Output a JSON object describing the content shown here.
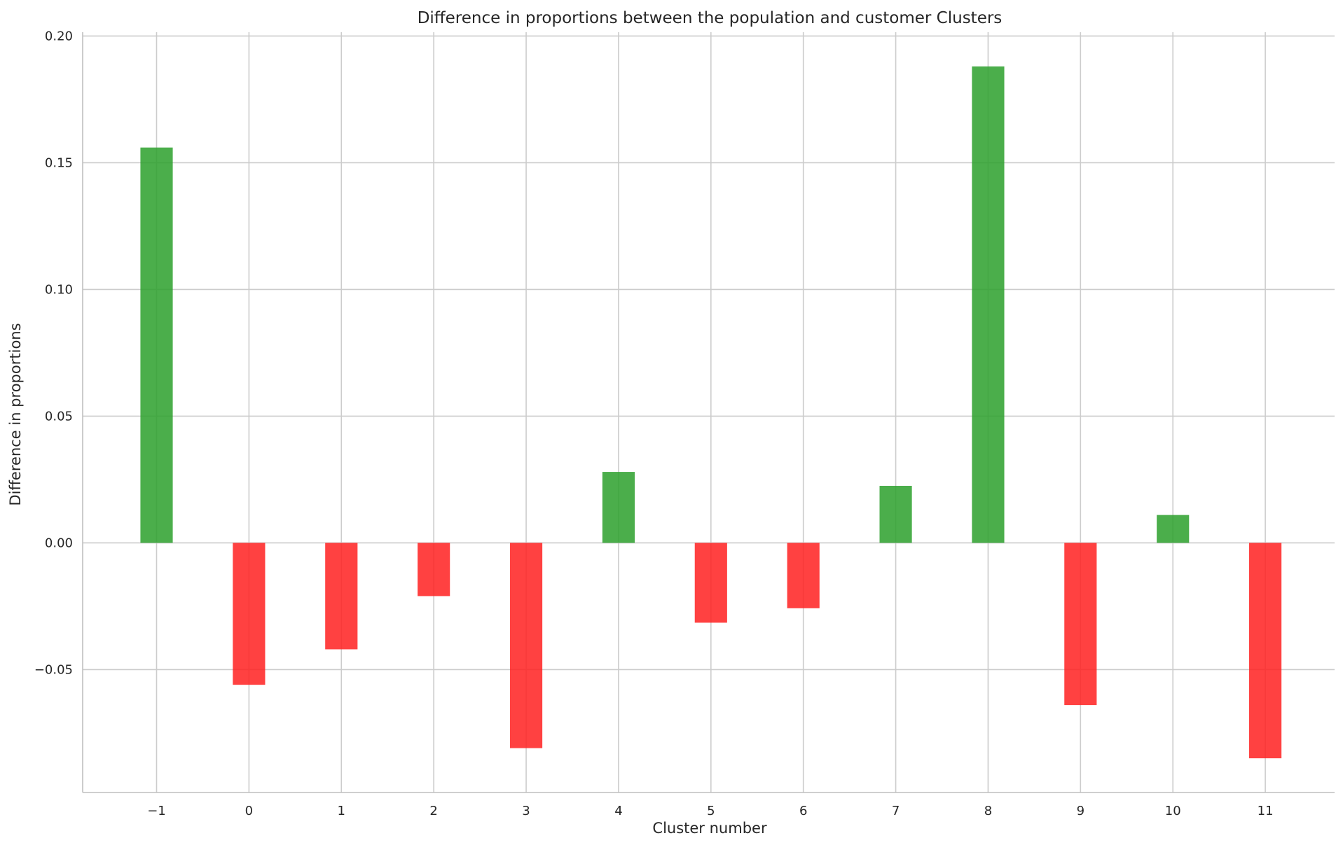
{
  "chart_data": {
    "type": "bar",
    "title": "Difference in proportions between the population and customer Clusters",
    "xlabel": "Cluster number",
    "ylabel": "Difference in proportions",
    "categories": [
      "−1",
      "0",
      "1",
      "2",
      "3",
      "4",
      "5",
      "6",
      "7",
      "8",
      "9",
      "10",
      "11"
    ],
    "x": [
      -1,
      0,
      1,
      2,
      3,
      4,
      5,
      6,
      7,
      8,
      9,
      10,
      11
    ],
    "values": [
      0.156,
      -0.056,
      -0.042,
      -0.021,
      -0.081,
      0.028,
      -0.0315,
      -0.0258,
      0.0225,
      0.188,
      -0.064,
      0.011,
      -0.085
    ],
    "xlim": [
      -1.8,
      11.75
    ],
    "ylim": [
      -0.0985,
      0.2015
    ],
    "yticks": [
      -0.05,
      0.0,
      0.05,
      0.1,
      0.15,
      0.2
    ],
    "ytick_labels": [
      "−0.05",
      "0.00",
      "0.05",
      "0.10",
      "0.15",
      "0.20"
    ],
    "bar_width": 0.35,
    "grid": true,
    "colors": {
      "positive": "#2ca02c",
      "negative": "#ff2020",
      "bar_opacity": 0.85
    }
  }
}
